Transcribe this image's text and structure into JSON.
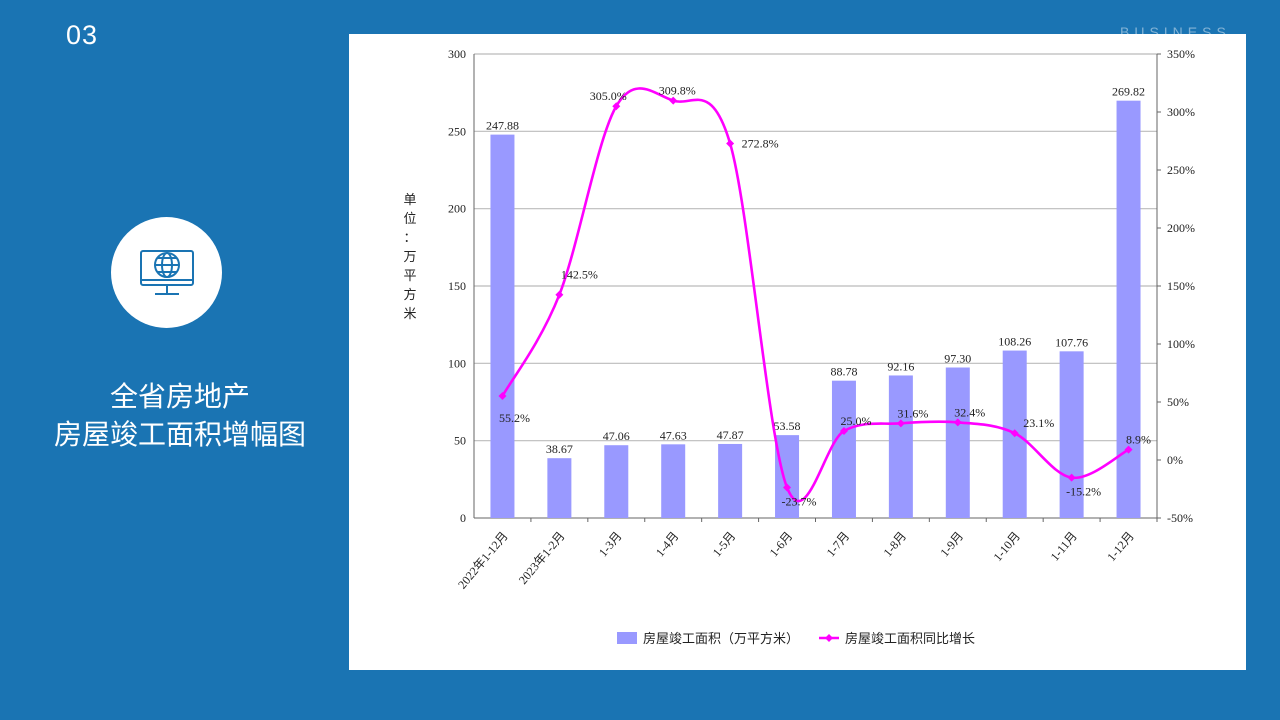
{
  "slide": {
    "number": "03",
    "watermark": "BUSINESS",
    "title_line1": "全省房地产",
    "title_line2": "房屋竣工面积增幅图",
    "icon": "globe-monitor-icon"
  },
  "colors": {
    "background": "#1a74b3",
    "bar": "#9999ff",
    "line": "#ff00ff"
  },
  "chart_data": {
    "type": "bar",
    "categories": [
      "2022年1-12月",
      "2023年1-2月",
      "1-3月",
      "1-4月",
      "1-5月",
      "1-6月",
      "1-7月",
      "1-8月",
      "1-9月",
      "1-10月",
      "1-11月",
      "1-12月"
    ],
    "series": [
      {
        "name": "房屋竣工面积（万平方米）",
        "type": "bar",
        "axis": "left",
        "values": [
          247.88,
          38.67,
          47.06,
          47.63,
          47.87,
          53.58,
          88.78,
          92.16,
          97.3,
          108.26,
          107.76,
          269.82
        ],
        "labels": [
          "247.88",
          "38.67",
          "47.06",
          "47.63",
          "47.87",
          "53.58",
          "88.78",
          "92.16",
          "97.30",
          "108.26",
          "107.76",
          "269.82"
        ]
      },
      {
        "name": "房屋竣工面积同比增长",
        "type": "line",
        "axis": "right",
        "values": [
          55.2,
          142.5,
          305.0,
          309.8,
          272.8,
          -23.7,
          25.0,
          31.6,
          32.4,
          23.1,
          -15.2,
          8.9
        ],
        "labels": [
          "55.2%",
          "142.5%",
          "305.0%",
          "309.8%",
          "272.8%",
          "-23.7%",
          "25.0%",
          "31.6%",
          "32.4%",
          "23.1%",
          "-15.2%",
          "8.9%"
        ]
      }
    ],
    "ylim_left": [
      0,
      300
    ],
    "yticks_left": [
      "0",
      "50",
      "100",
      "150",
      "200",
      "250",
      "300"
    ],
    "ylim_right": [
      -50,
      350
    ],
    "yticks_right": [
      "-50%",
      "0%",
      "50%",
      "100%",
      "150%",
      "200%",
      "250%",
      "300%",
      "350%"
    ],
    "ylabel_chars": [
      "单",
      "位",
      "：",
      "万",
      "平",
      "方",
      "米"
    ],
    "grid": true,
    "legend_position": "bottom"
  }
}
